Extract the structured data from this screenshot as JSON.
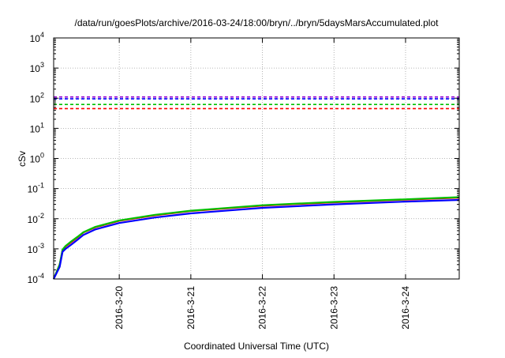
{
  "chart_data": {
    "type": "line",
    "title": "/data/run/goesPlots/archive/2016-03-24/18:00/bryn/../bryn/5daysMarsAccumulated.plot",
    "xlabel": "Coordinated Universal Time (UTC)",
    "ylabel": "cSv",
    "yscale": "log",
    "ylim": [
      0.0001,
      10000
    ],
    "xlim": [
      "2016-03-19T02:00",
      "2016-03-24T18:00"
    ],
    "x_ticks": [
      "2016-3-20",
      "2016-3-21",
      "2016-3-22",
      "2016-3-23",
      "2016-3-24"
    ],
    "x_tick_dates": [
      "2016-03-20",
      "2016-03-21",
      "2016-03-22",
      "2016-03-23",
      "2016-03-24"
    ],
    "y_ticks": [
      {
        "base": "10",
        "exp": "-4",
        "value": 0.0001
      },
      {
        "base": "10",
        "exp": "-3",
        "value": 0.001
      },
      {
        "base": "10",
        "exp": "-2",
        "value": 0.01
      },
      {
        "base": "10",
        "exp": "-1",
        "value": 0.1
      },
      {
        "base": "10",
        "exp": "0",
        "value": 1
      },
      {
        "base": "10",
        "exp": "1",
        "value": 10
      },
      {
        "base": "10",
        "exp": "2",
        "value": 100
      },
      {
        "base": "10",
        "exp": "3",
        "value": 1000
      },
      {
        "base": "10",
        "exp": "4",
        "value": 10000
      }
    ],
    "grid": true,
    "reference_lines": [
      {
        "y": 110,
        "color": "#9400d3",
        "style": "dashed"
      },
      {
        "y": 95,
        "color": "#0000ff",
        "style": "dashed"
      },
      {
        "y": 62,
        "color": "#00c000",
        "style": "dashed"
      },
      {
        "y": 45,
        "color": "#ff0000",
        "style": "dashed"
      }
    ],
    "series": [
      {
        "color": "#ff0000",
        "x": [
          "2016-03-19T02:00",
          "2016-03-19T04:00",
          "2016-03-19T05:00",
          "2016-03-19T06:00",
          "2016-03-19T08:00",
          "2016-03-19T10:00",
          "2016-03-19T12:00",
          "2016-03-19T16:00",
          "2016-03-20T00:00",
          "2016-03-20T12:00",
          "2016-03-21T00:00",
          "2016-03-22T00:00",
          "2016-03-23T00:00",
          "2016-03-24T00:00",
          "2016-03-24T18:00"
        ],
        "y": [
          0.0001,
          0.0003,
          0.0009,
          0.0012,
          0.0017,
          0.0024,
          0.0035,
          0.0052,
          0.0085,
          0.013,
          0.018,
          0.027,
          0.035,
          0.043,
          0.05
        ]
      },
      {
        "color": "#00c000",
        "x": [
          "2016-03-19T02:00",
          "2016-03-19T04:00",
          "2016-03-19T05:00",
          "2016-03-19T06:00",
          "2016-03-19T08:00",
          "2016-03-19T10:00",
          "2016-03-19T12:00",
          "2016-03-19T16:00",
          "2016-03-20T00:00",
          "2016-03-20T12:00",
          "2016-03-21T00:00",
          "2016-03-22T00:00",
          "2016-03-23T00:00",
          "2016-03-24T00:00",
          "2016-03-24T18:00"
        ],
        "y": [
          0.0001,
          0.0003,
          0.00095,
          0.00125,
          0.0018,
          0.0025,
          0.0036,
          0.0054,
          0.0088,
          0.0135,
          0.0185,
          0.028,
          0.036,
          0.044,
          0.052
        ]
      },
      {
        "color": "#0000ff",
        "x": [
          "2016-03-19T02:00",
          "2016-03-19T04:00",
          "2016-03-19T05:00",
          "2016-03-19T06:00",
          "2016-03-19T08:00",
          "2016-03-19T10:00",
          "2016-03-19T12:00",
          "2016-03-19T16:00",
          "2016-03-20T00:00",
          "2016-03-20T12:00",
          "2016-03-21T00:00",
          "2016-03-22T00:00",
          "2016-03-23T00:00",
          "2016-03-24T00:00",
          "2016-03-24T18:00"
        ],
        "y": [
          0.0001,
          0.00025,
          0.0008,
          0.001,
          0.0014,
          0.002,
          0.0029,
          0.0044,
          0.0072,
          0.011,
          0.015,
          0.023,
          0.03,
          0.037,
          0.042
        ]
      }
    ]
  }
}
